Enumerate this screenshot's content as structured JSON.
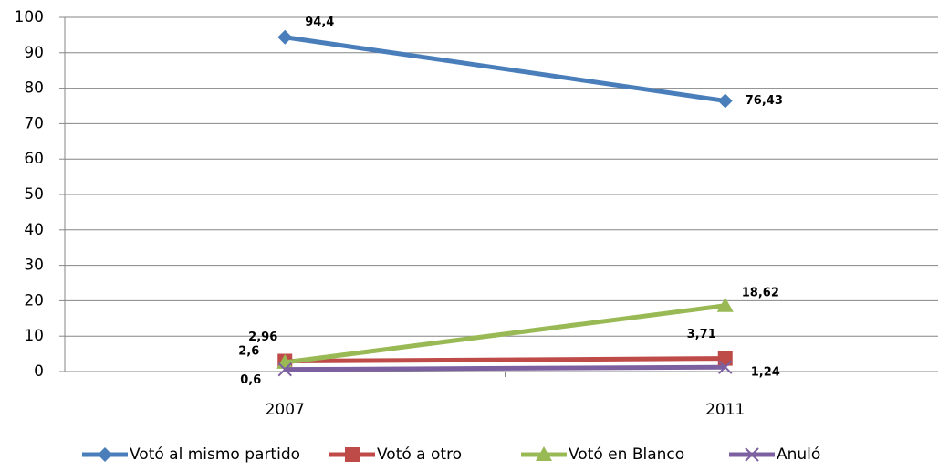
{
  "chart_data": {
    "type": "line",
    "categories": [
      "2007",
      "2011"
    ],
    "series": [
      {
        "name": "Votó al mismo partido",
        "color": "#4a7ebb",
        "marker": "diamond",
        "values": [
          94.4,
          76.43
        ],
        "value_labels": [
          "94,4",
          "76,43"
        ]
      },
      {
        "name": "Votó a otro",
        "color": "#be4b48",
        "marker": "square",
        "values": [
          2.96,
          3.71
        ],
        "value_labels": [
          "2,96",
          "3,71"
        ]
      },
      {
        "name": "Votó en Blanco",
        "color": "#98b954",
        "marker": "triangle",
        "values": [
          2.6,
          18.62
        ],
        "value_labels": [
          "2,6",
          "18,62"
        ]
      },
      {
        "name": "Anuló",
        "color": "#7d60a0",
        "marker": "x",
        "values": [
          0.6,
          1.24
        ],
        "value_labels": [
          "0,6",
          "1,24"
        ]
      }
    ],
    "ylim": [
      0,
      100
    ],
    "yticks": [
      0,
      10,
      20,
      30,
      40,
      50,
      60,
      70,
      80,
      90,
      100
    ],
    "grid": true,
    "legend": "bottom"
  }
}
